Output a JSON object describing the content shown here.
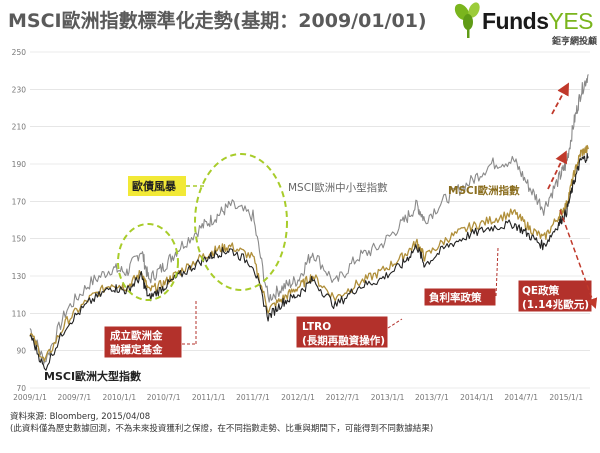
{
  "header": {
    "title": "MSCI歐洲指數標準化走勢(基期：2009/01/01)"
  },
  "logo": {
    "word_main": "Funds",
    "word_accent": "YES",
    "subtitle": "鉅亨網投顧"
  },
  "footer": {
    "source": "資料來源: Bloomberg, 2015/04/08",
    "disclaimer": "(此資料僅為歷史數據回測，不為未來投資獲利之保證，在不同指數走勢、比重與期間下，可能得到不同數據結果)"
  },
  "colors": {
    "small_mid": "#8a8a8a",
    "msci_europe": "#b08f3a",
    "large": "#222222",
    "annotation_red": "#b3312b",
    "ellipse": "#a8cc2a",
    "arrow": "#c0392b"
  },
  "chart_data": {
    "type": "line",
    "ylim": [
      70,
      250
    ],
    "yticks": [
      70,
      90,
      110,
      130,
      150,
      170,
      190,
      210,
      230,
      250
    ],
    "xlim": [
      "2009-01-01",
      "2015-04-08"
    ],
    "xtick_labels": [
      "2009/1/1",
      "2009/7/1",
      "2010/1/1",
      "2010/7/1",
      "2011/1/1",
      "2011/7/1",
      "2012/1/1",
      "2012/7/1",
      "2013/1/1",
      "2013/7/1",
      "2014/1/1",
      "2014/7/1",
      "2015/1/1"
    ],
    "series": [
      {
        "name": "MSCI歐洲中小型指數",
        "color": "#8a8a8a",
        "x": [
          "2009-01",
          "2009-03",
          "2009-06",
          "2009-09",
          "2009-12",
          "2010-02",
          "2010-04",
          "2010-05",
          "2010-07",
          "2010-09",
          "2010-12",
          "2011-02",
          "2011-04",
          "2011-07",
          "2011-09",
          "2011-11",
          "2012-01",
          "2012-03",
          "2012-06",
          "2012-09",
          "2012-12",
          "2013-03",
          "2013-05",
          "2013-06",
          "2013-09",
          "2013-12",
          "2014-03",
          "2014-06",
          "2014-08",
          "2014-10",
          "2014-12",
          "2015-01",
          "2015-02",
          "2015-03",
          "2015-04"
        ],
        "values": [
          102,
          84,
          112,
          126,
          134,
          132,
          144,
          128,
          135,
          145,
          156,
          162,
          168,
          162,
          118,
          124,
          128,
          143,
          126,
          140,
          146,
          158,
          168,
          160,
          172,
          180,
          190,
          192,
          178,
          166,
          182,
          190,
          212,
          228,
          238
        ]
      },
      {
        "name": "MSCI歐洲指數",
        "color": "#b08f3a",
        "x": [
          "2009-01",
          "2009-03",
          "2009-06",
          "2009-09",
          "2009-12",
          "2010-02",
          "2010-04",
          "2010-05",
          "2010-07",
          "2010-09",
          "2010-12",
          "2011-02",
          "2011-04",
          "2011-07",
          "2011-09",
          "2011-11",
          "2012-01",
          "2012-03",
          "2012-06",
          "2012-09",
          "2012-12",
          "2013-03",
          "2013-05",
          "2013-06",
          "2013-09",
          "2013-12",
          "2014-03",
          "2014-06",
          "2014-08",
          "2014-10",
          "2014-12",
          "2015-01",
          "2015-02",
          "2015-03",
          "2015-04"
        ],
        "values": [
          100,
          84,
          106,
          118,
          126,
          124,
          132,
          122,
          126,
          132,
          140,
          144,
          146,
          140,
          112,
          118,
          124,
          130,
          118,
          126,
          132,
          140,
          148,
          140,
          150,
          156,
          160,
          164,
          156,
          150,
          162,
          168,
          184,
          196,
          198
        ]
      },
      {
        "name": "MSCI歐洲大型指數",
        "color": "#222222",
        "x": [
          "2009-01",
          "2009-03",
          "2009-06",
          "2009-09",
          "2009-12",
          "2010-02",
          "2010-04",
          "2010-05",
          "2010-07",
          "2010-09",
          "2010-12",
          "2011-02",
          "2011-04",
          "2011-07",
          "2011-09",
          "2011-11",
          "2012-01",
          "2012-03",
          "2012-06",
          "2012-09",
          "2012-12",
          "2013-03",
          "2013-05",
          "2013-06",
          "2013-09",
          "2013-12",
          "2014-03",
          "2014-06",
          "2014-08",
          "2014-10",
          "2014-12",
          "2015-01",
          "2015-02",
          "2015-03",
          "2015-04"
        ],
        "values": [
          99,
          80,
          104,
          116,
          124,
          122,
          130,
          118,
          124,
          130,
          138,
          142,
          144,
          136,
          108,
          116,
          120,
          128,
          114,
          124,
          128,
          136,
          146,
          136,
          146,
          152,
          156,
          158,
          152,
          146,
          158,
          164,
          180,
          192,
          194
        ]
      }
    ],
    "annotations": {
      "euro_debt": "歐債風暴",
      "efsf_line1": "成立歐洲金",
      "efsf_line2": "融穩定基金",
      "ltro_line1": "LTRO",
      "ltro_line2": "(長期再融資操作)",
      "neg_rate": "負利率政策",
      "qe_line1": "QE政策",
      "qe_line2": "(1.14兆歐元)"
    }
  }
}
